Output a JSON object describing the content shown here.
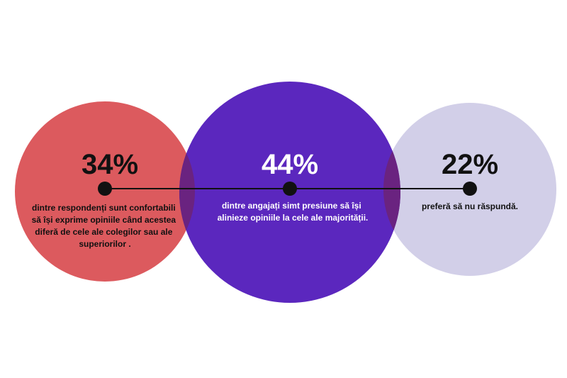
{
  "chart_data": {
    "type": "bubble",
    "title": "",
    "items": [
      {
        "value": 34,
        "label": "34%",
        "description_lines": [
          "dintre respondenți sunt confortabili",
          "să își exprime opiniile când acestea",
          "diferă de cele ale colegilor sau ale",
          "superiorilor ."
        ],
        "color": "#dc5a5e",
        "text_color": "#111111"
      },
      {
        "value": 44,
        "label": "44%",
        "description_lines": [
          "dintre angajați simt presiune să își",
          "alinieze opiniile la cele ale majorității."
        ],
        "color": "#5b27be",
        "text_color": "#ffffff"
      },
      {
        "value": 22,
        "label": "22%",
        "description_lines": [
          "preferă să nu răspundă."
        ],
        "color": "#d2cfe8",
        "text_color": "#111111"
      }
    ],
    "connector_color": "#111111",
    "overlap_color": "#6a2380"
  }
}
